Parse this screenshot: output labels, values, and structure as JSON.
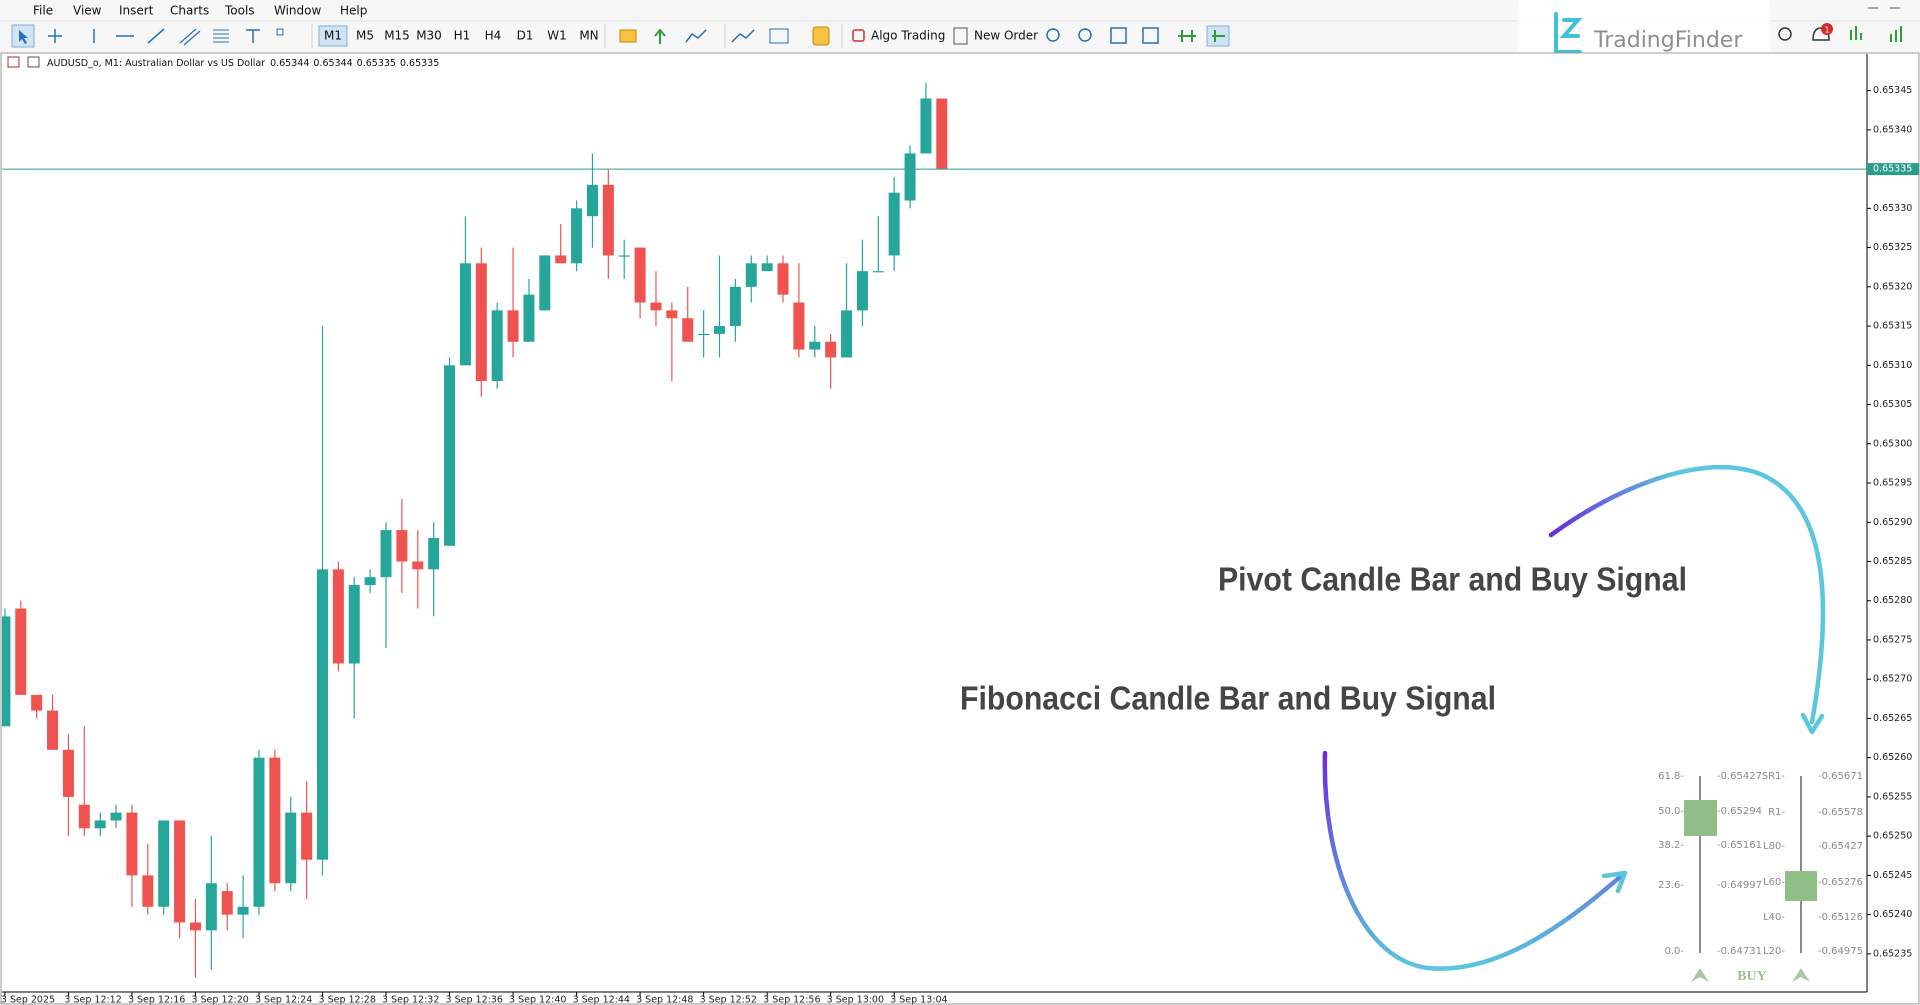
{
  "menu": [
    "File",
    "View",
    "Insert",
    "Charts",
    "Tools",
    "Window",
    "Help"
  ],
  "toolbar": {
    "timeframes": [
      "M1",
      "M5",
      "M15",
      "M30",
      "H1",
      "H4",
      "D1",
      "W1",
      "MN"
    ],
    "algo_trading": "Algo Trading",
    "new_order": "New Order"
  },
  "logo": "TradingFinder",
  "notification_count": "1",
  "chart_data": {
    "type": "candlestick",
    "title": "AUDUSD_o, M1:  Australian Dollar vs US Dollar",
    "categories": [
      "3 Sep 2025",
      null,
      null,
      null,
      "3 Sep 12:12",
      null,
      null,
      null,
      "3 Sep 12:16",
      null,
      null,
      null,
      "3 Sep 12:20",
      null,
      null,
      null,
      "3 Sep 12:24",
      null,
      null,
      null,
      "3 Sep 12:28",
      null,
      null,
      null,
      "3 Sep 12:32",
      null,
      null,
      null,
      "3 Sep 12:36",
      null,
      null,
      null,
      "3 Sep 12:40",
      null,
      null,
      null,
      "3 Sep 12:44",
      null,
      null,
      null,
      "3 Sep 12:48",
      null,
      null,
      null,
      "3 Sep 12:52",
      null,
      null,
      null,
      "3 Sep 12:56",
      null,
      null,
      null,
      "3 Sep 13:00",
      null,
      null,
      null,
      "3 Sep 13:04",
      null,
      null,
      null
    ],
    "open": [
      0.65264,
      0.65279,
      0.65268,
      0.65266,
      0.65261,
      0.65254,
      0.65251,
      0.65252,
      0.65253,
      0.65245,
      0.65241,
      0.65252,
      0.65239,
      0.65238,
      0.65243,
      0.6524,
      0.65241,
      0.6526,
      0.65244,
      0.65253,
      0.65247,
      0.65284,
      0.65272,
      0.65282,
      0.65283,
      0.65289,
      0.65285,
      0.65284,
      0.65287,
      0.6531,
      0.65323,
      0.65308,
      0.65317,
      0.65313,
      0.65317,
      0.65324,
      0.65323,
      0.65329,
      0.65333,
      0.65324,
      0.65325,
      0.65318,
      0.65317,
      0.65316,
      0.65314,
      0.65314,
      0.65315,
      0.6532,
      0.65322,
      0.65323,
      0.65318,
      0.65312,
      0.65313,
      0.65311,
      0.65317,
      0.65322,
      0.65324,
      0.65331,
      0.65337,
      0.65344
    ],
    "high": [
      0.65279,
      0.6528,
      0.65268,
      0.65268,
      0.65263,
      0.65264,
      0.65253,
      0.65254,
      0.65254,
      0.65249,
      0.65252,
      0.65252,
      0.65242,
      0.6525,
      0.65244,
      0.65245,
      0.65261,
      0.65261,
      0.65255,
      0.65257,
      0.65315,
      0.65285,
      0.65283,
      0.65284,
      0.6529,
      0.65293,
      0.65289,
      0.6529,
      0.65311,
      0.65329,
      0.65325,
      0.65318,
      0.65325,
      0.65321,
      0.65324,
      0.65328,
      0.65331,
      0.65337,
      0.65335,
      0.65326,
      0.65325,
      0.65322,
      0.65318,
      0.6532,
      0.65317,
      0.65324,
      0.65321,
      0.65324,
      0.65324,
      0.65324,
      0.65323,
      0.65315,
      0.65314,
      0.65323,
      0.65326,
      0.65329,
      0.65334,
      0.65338,
      0.65346,
      0.65344
    ],
    "low": [
      0.65264,
      0.65268,
      0.65265,
      0.65261,
      0.6525,
      0.6525,
      0.6525,
      0.65251,
      0.65241,
      0.6524,
      0.6524,
      0.65237,
      0.65232,
      0.65233,
      0.65238,
      0.65237,
      0.6524,
      0.65243,
      0.65243,
      0.65242,
      0.65245,
      0.65271,
      0.65265,
      0.65281,
      0.65274,
      0.65281,
      0.65279,
      0.65278,
      0.65287,
      0.6531,
      0.65306,
      0.65307,
      0.65311,
      0.65313,
      0.65317,
      0.65323,
      0.65322,
      0.65325,
      0.65321,
      0.65321,
      0.65316,
      0.65315,
      0.65308,
      0.65313,
      0.65311,
      0.65311,
      0.65313,
      0.65318,
      0.65322,
      0.65318,
      0.65311,
      0.65311,
      0.65307,
      0.65311,
      0.65315,
      0.65322,
      0.65322,
      0.6533,
      0.65337,
      0.65335
    ],
    "close": [
      0.65278,
      0.65268,
      0.65266,
      0.65261,
      0.65255,
      0.65251,
      0.65252,
      0.65253,
      0.65245,
      0.65241,
      0.65252,
      0.65239,
      0.65238,
      0.65244,
      0.6524,
      0.65241,
      0.6526,
      0.65244,
      0.65253,
      0.65247,
      0.65284,
      0.65272,
      0.65282,
      0.65283,
      0.65289,
      0.65285,
      0.65284,
      0.65288,
      0.6531,
      0.65323,
      0.65308,
      0.65317,
      0.65313,
      0.65319,
      0.65324,
      0.65323,
      0.6533,
      0.65333,
      0.65324,
      0.65324,
      0.65318,
      0.65317,
      0.65316,
      0.65313,
      0.65314,
      0.65315,
      0.6532,
      0.65323,
      0.65323,
      0.65319,
      0.65312,
      0.65313,
      0.65311,
      0.65317,
      0.65322,
      0.65322,
      0.65332,
      0.65337,
      0.65344,
      0.65335
    ],
    "up_color": "#26a69a",
    "down_color": "#ef5350",
    "current_price": 0.65335,
    "current_price_color": "#2a9d8f",
    "ylim": [
      0.6523,
      0.6535
    ],
    "yticks": [
      0.65235,
      {
        "value": 0.6524,
        "label": "0.65240"
      },
      0.65245,
      {
        "value": 0.6525,
        "label": "0.65250"
      },
      0.65255,
      {
        "value": 0.6526,
        "label": "0.65260"
      },
      0.65265,
      {
        "value": 0.6527,
        "label": "0.65270"
      },
      0.65275,
      {
        "value": 0.6528,
        "label": "0.65280"
      },
      0.65285,
      {
        "value": 0.6529,
        "label": "0.65290"
      },
      0.65295,
      {
        "value": 0.653,
        "label": "0.65300"
      },
      0.65305,
      {
        "value": 0.6531,
        "label": "0.65310"
      },
      0.65315,
      {
        "value": 0.6532,
        "label": "0.65320"
      },
      0.65325,
      {
        "value": 0.6533,
        "label": "0.65330"
      },
      0.65335,
      {
        "value": 0.6534,
        "label": "0.65340"
      },
      0.65345
    ],
    "grid": false
  },
  "annotations": [
    "Pivot Candle Bar and Buy Signal",
    "Fibonacci Candle Bar and Buy Signal"
  ],
  "indicator": {
    "fibonacci": {
      "levels": [
        "61.8-",
        "50.0-",
        "38.2-",
        "23.6-",
        "0.0-"
      ],
      "prices": [
        "-0.65427",
        "-0.65294",
        "-0.65161",
        "-0.64997",
        "-0.64731"
      ]
    },
    "pivot": {
      "levels": [
        "SR1-",
        "R1-",
        "L80-",
        "L60-",
        "L40-",
        "L20-"
      ],
      "prices": [
        "-0.65671",
        "-0.65578",
        "-0.65427",
        "-0.65276",
        "-0.65126",
        "-0.64975"
      ]
    },
    "signal": "BUY"
  }
}
